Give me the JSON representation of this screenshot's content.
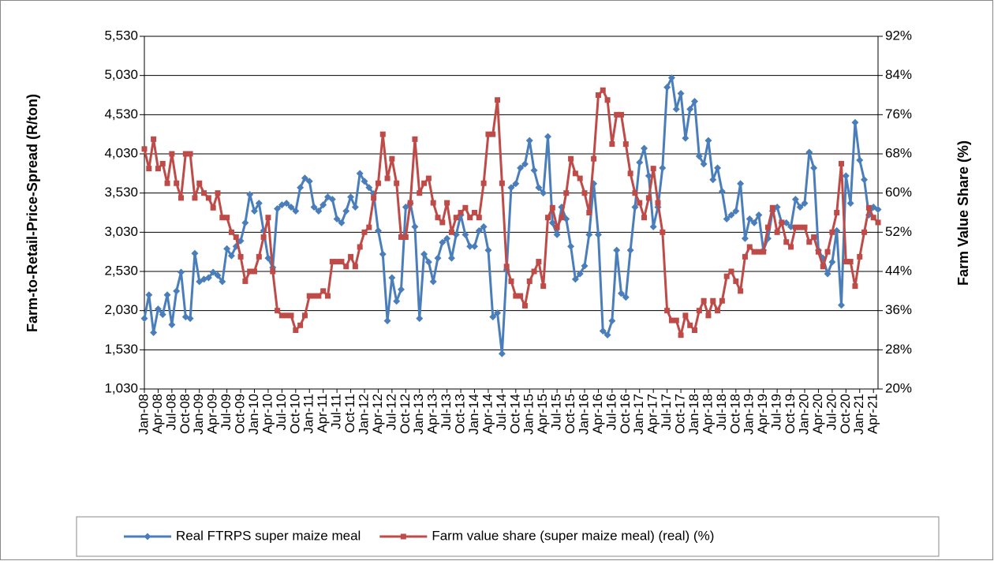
{
  "chart_data": {
    "type": "line",
    "y_label": "Farm-to-Retail-Price-Spread (R/ton)",
    "y2_label": "Farm Value Share (%)",
    "categories": [
      "Jan-08",
      null,
      null,
      "Apr-08",
      null,
      null,
      "Jul-08",
      null,
      null,
      "Oct-08",
      null,
      null,
      "Jan-09",
      null,
      null,
      "Apr-09",
      null,
      null,
      "Jul-09",
      null,
      null,
      "Oct-09",
      null,
      null,
      "Jan-10",
      null,
      null,
      "Apr-10",
      null,
      null,
      "Jul-10",
      null,
      null,
      "Oct-10",
      null,
      null,
      "Jan-11",
      null,
      null,
      "Apr-11",
      null,
      null,
      "Jul-11",
      null,
      null,
      "Oct-11",
      null,
      null,
      "Jan-12",
      null,
      null,
      "Apr-12",
      null,
      null,
      "Jul-12",
      null,
      null,
      "Oct-12",
      null,
      null,
      "Jan-13",
      null,
      null,
      "Apr-13",
      null,
      null,
      "Jul-13",
      null,
      null,
      "Oct-13",
      null,
      null,
      "Jan-14",
      null,
      null,
      "Apr-14",
      null,
      null,
      "Jul-14",
      null,
      null,
      "Oct-14",
      null,
      null,
      "Jan-15",
      null,
      null,
      "Apr-15",
      null,
      null,
      "Jul-15",
      null,
      null,
      "Oct-15",
      null,
      null,
      "Jan-16",
      null,
      null,
      "Apr-16",
      null,
      null,
      "Jul-16",
      null,
      null,
      "Oct-16",
      null,
      null,
      "Jan-17",
      null,
      null,
      "Apr-17",
      null,
      null,
      "Jul-17",
      null,
      null,
      "Oct-17",
      null,
      null,
      "Jan-18",
      null,
      null,
      "Apr-18",
      null,
      null,
      "Jul-18",
      null,
      null,
      "Oct-18",
      null,
      null,
      "Jan-19",
      null,
      null,
      "Apr-19",
      null,
      null,
      "Jul-19",
      null,
      null,
      "Oct-19",
      null,
      null,
      "Jan-20",
      null,
      null,
      "Apr-20",
      null,
      null,
      "Jul-20",
      null,
      null,
      "Oct-20",
      null,
      null,
      "Jan-21",
      null,
      null,
      "Apr-21",
      null
    ],
    "series": [
      {
        "name": "Real FTRPS super maize meal",
        "color": "#4a7ebb",
        "marker": "diamond",
        "values": [
          1930,
          2230,
          1750,
          2050,
          1980,
          2230,
          1850,
          2280,
          2520,
          1950,
          1930,
          2760,
          2400,
          2430,
          2450,
          2520,
          2480,
          2400,
          2820,
          2730,
          2850,
          2920,
          3150,
          3510,
          3300,
          3400,
          3050,
          2700,
          2580,
          3330,
          3380,
          3400,
          3350,
          3300,
          3600,
          3720,
          3680,
          3350,
          3300,
          3380,
          3480,
          3450,
          3200,
          3150,
          3300,
          3480,
          3350,
          3780,
          3680,
          3600,
          3520,
          3050,
          2750,
          1900,
          2450,
          2150,
          2300,
          3350,
          3400,
          3100,
          1930,
          2750,
          2650,
          2400,
          2700,
          2900,
          2950,
          2700,
          3000,
          3250,
          3000,
          2850,
          2850,
          3050,
          3100,
          2800,
          1950,
          2000,
          1480,
          2550,
          3600,
          3650,
          3850,
          3900,
          4200,
          3820,
          3600,
          3530,
          4250,
          3150,
          3000,
          3350,
          3200,
          2850,
          2430,
          2500,
          2600,
          3000,
          3650,
          3000,
          1770,
          1720,
          1900,
          2800,
          2250,
          2200,
          2800,
          3350,
          3920,
          4100,
          3750,
          3100,
          3350,
          3850,
          4880,
          5000,
          4600,
          4800,
          4230,
          4600,
          4700,
          4000,
          3900,
          4200,
          3700,
          3850,
          3550,
          3200,
          3250,
          3300,
          3650,
          2950,
          3200,
          3150,
          3250,
          2800,
          2950,
          3300,
          3350,
          3150,
          3150,
          3100,
          3450,
          3350,
          3400,
          4050,
          3850,
          2800,
          2700,
          2500,
          2650,
          3050,
          2100,
          3750,
          3400,
          4430,
          3950,
          3700,
          3250,
          3350,
          3320
        ]
      },
      {
        "name": "Farm value share (super maize meal) (real) (%)",
        "color": "#be4b48",
        "marker": "square",
        "axis": "y2",
        "values": [
          69,
          65,
          71,
          65,
          66,
          62,
          68,
          62,
          59,
          68,
          68,
          59,
          62,
          60,
          59,
          57,
          60,
          55,
          55,
          52,
          51,
          47,
          42,
          44,
          44,
          47,
          51,
          55,
          44,
          36,
          35,
          35,
          35,
          32,
          33,
          35,
          39,
          39,
          39,
          40,
          39,
          46,
          46,
          46,
          45,
          47,
          45,
          49,
          52,
          53,
          59,
          62,
          72,
          63,
          67,
          62,
          51,
          51,
          58,
          71,
          60,
          62,
          63,
          58,
          55,
          54,
          58,
          52,
          55,
          56,
          57,
          55,
          56,
          55,
          62,
          72,
          72,
          79,
          62,
          45,
          42,
          39,
          39,
          37,
          42,
          44,
          46,
          41,
          55,
          57,
          53,
          55,
          60,
          67,
          64,
          63,
          60,
          56,
          67,
          80,
          81,
          79,
          70,
          76,
          76,
          70,
          64,
          60,
          58,
          55,
          59,
          65,
          58,
          52,
          36,
          34,
          34,
          31,
          35,
          33,
          32,
          36,
          38,
          35,
          38,
          36,
          38,
          43,
          44,
          42,
          40,
          47,
          49,
          48,
          48,
          48,
          53,
          57,
          52,
          54,
          50,
          49,
          53,
          53,
          53,
          50,
          51,
          48,
          45,
          48,
          52,
          56,
          66,
          46,
          46,
          41,
          47,
          52,
          57,
          55,
          54
        ]
      }
    ],
    "ylim": [
      1030,
      5530
    ],
    "yticks": [
      {
        "value": 1030,
        "label": "1,030"
      },
      {
        "value": 1530,
        "label": "1,530"
      },
      {
        "value": 2030,
        "label": "2,030"
      },
      {
        "value": 2530,
        "label": "2,530"
      },
      {
        "value": 3030,
        "label": "3,030"
      },
      {
        "value": 3530,
        "label": "3,530"
      },
      {
        "value": 4030,
        "label": "4,030"
      },
      {
        "value": 4530,
        "label": "4,530"
      },
      {
        "value": 5030,
        "label": "5,030"
      },
      {
        "value": 5530,
        "label": "5,530"
      }
    ],
    "y2lim": [
      20,
      92
    ],
    "y2ticks": [
      {
        "value": 20,
        "label": "20%"
      },
      {
        "value": 28,
        "label": "28%"
      },
      {
        "value": 36,
        "label": "36%"
      },
      {
        "value": 44,
        "label": "44%"
      },
      {
        "value": 52,
        "label": "52%"
      },
      {
        "value": 60,
        "label": "60%"
      },
      {
        "value": 68,
        "label": "68%"
      },
      {
        "value": 76,
        "label": "76%"
      },
      {
        "value": 84,
        "label": "84%"
      },
      {
        "value": 92,
        "label": "92%"
      }
    ],
    "grid": true,
    "legend": "bottom"
  }
}
